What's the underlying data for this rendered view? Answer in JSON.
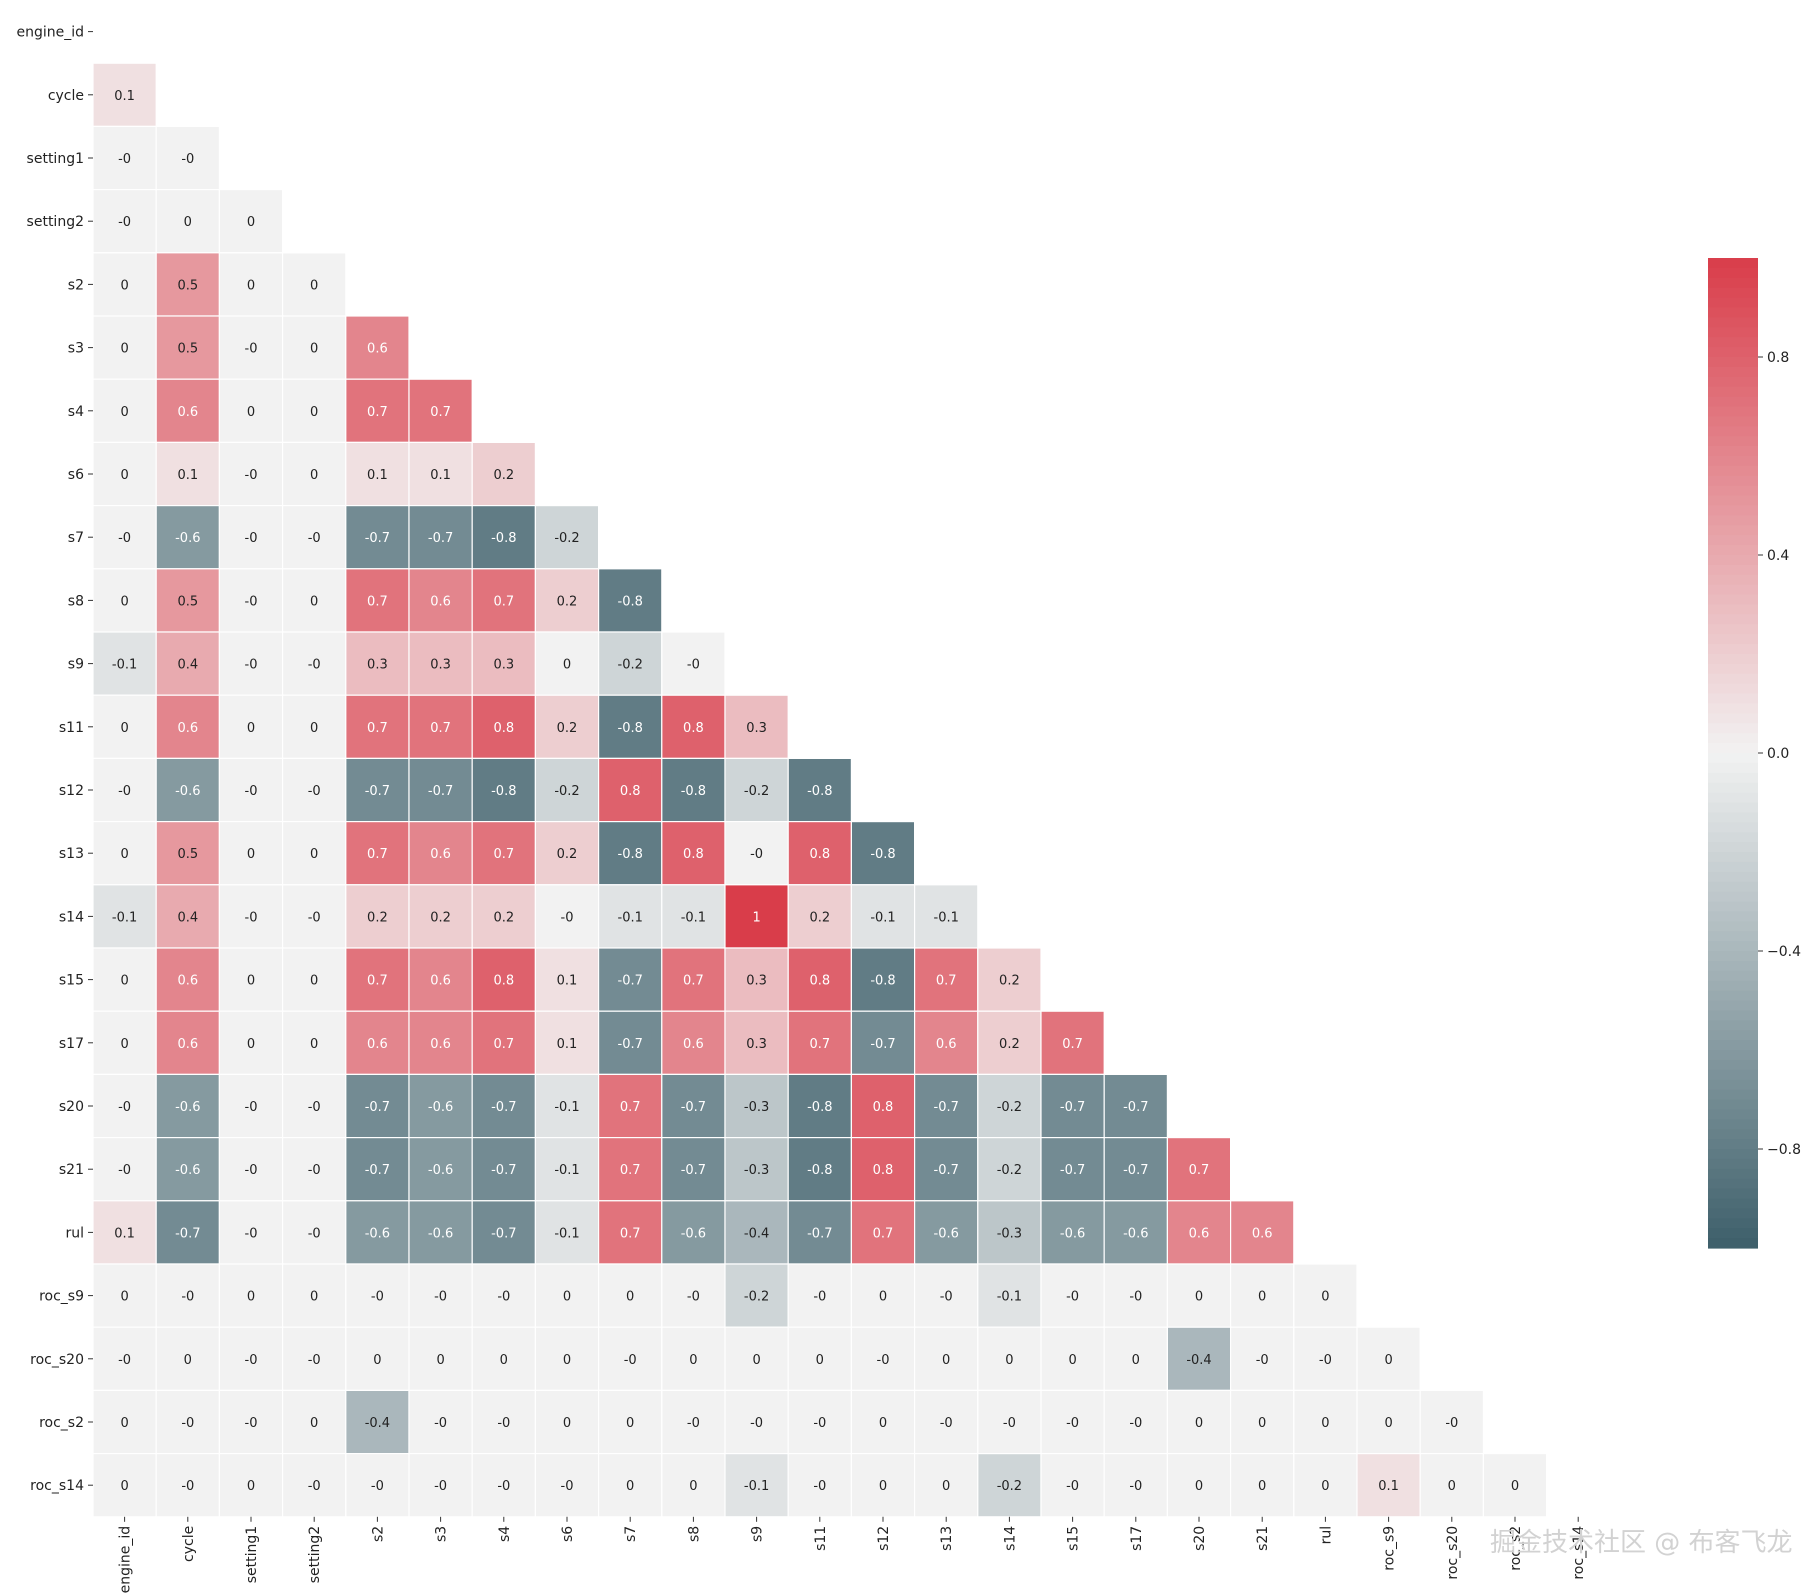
{
  "chart_data": {
    "type": "heatmap",
    "variant": "lower-triangle correlation matrix",
    "labels": [
      "engine_id",
      "cycle",
      "setting1",
      "setting2",
      "s2",
      "s3",
      "s4",
      "s6",
      "s7",
      "s8",
      "s9",
      "s11",
      "s12",
      "s13",
      "s14",
      "s15",
      "s17",
      "s20",
      "s21",
      "rul",
      "roc_s9",
      "roc_s20",
      "roc_s2",
      "roc_s14"
    ],
    "rows": [
      [],
      [
        "0.1"
      ],
      [
        "-0",
        "-0"
      ],
      [
        "-0",
        "0",
        "0"
      ],
      [
        "0",
        "0.5",
        "0",
        "0"
      ],
      [
        "0",
        "0.5",
        "-0",
        "0",
        "0.6"
      ],
      [
        "0",
        "0.6",
        "0",
        "0",
        "0.7",
        "0.7"
      ],
      [
        "0",
        "0.1",
        "-0",
        "0",
        "0.1",
        "0.1",
        "0.2"
      ],
      [
        "-0",
        "-0.6",
        "-0",
        "-0",
        "-0.7",
        "-0.7",
        "-0.8",
        "-0.2"
      ],
      [
        "0",
        "0.5",
        "-0",
        "0",
        "0.7",
        "0.6",
        "0.7",
        "0.2",
        "-0.8"
      ],
      [
        "-0.1",
        "0.4",
        "-0",
        "-0",
        "0.3",
        "0.3",
        "0.3",
        "0",
        "-0.2",
        "-0"
      ],
      [
        "0",
        "0.6",
        "0",
        "0",
        "0.7",
        "0.7",
        "0.8",
        "0.2",
        "-0.8",
        "0.8",
        "0.3"
      ],
      [
        "-0",
        "-0.6",
        "-0",
        "-0",
        "-0.7",
        "-0.7",
        "-0.8",
        "-0.2",
        "0.8",
        "-0.8",
        "-0.2",
        "-0.8"
      ],
      [
        "0",
        "0.5",
        "0",
        "0",
        "0.7",
        "0.6",
        "0.7",
        "0.2",
        "-0.8",
        "0.8",
        "-0",
        "0.8",
        "-0.8"
      ],
      [
        "-0.1",
        "0.4",
        "-0",
        "-0",
        "0.2",
        "0.2",
        "0.2",
        "-0",
        "-0.1",
        "-0.1",
        "1",
        "0.2",
        "-0.1",
        "-0.1"
      ],
      [
        "0",
        "0.6",
        "0",
        "0",
        "0.7",
        "0.6",
        "0.8",
        "0.1",
        "-0.7",
        "0.7",
        "0.3",
        "0.8",
        "-0.8",
        "0.7",
        "0.2"
      ],
      [
        "0",
        "0.6",
        "0",
        "0",
        "0.6",
        "0.6",
        "0.7",
        "0.1",
        "-0.7",
        "0.6",
        "0.3",
        "0.7",
        "-0.7",
        "0.6",
        "0.2",
        "0.7"
      ],
      [
        "-0",
        "-0.6",
        "-0",
        "-0",
        "-0.7",
        "-0.6",
        "-0.7",
        "-0.1",
        "0.7",
        "-0.7",
        "-0.3",
        "-0.8",
        "0.8",
        "-0.7",
        "-0.2",
        "-0.7",
        "-0.7"
      ],
      [
        "-0",
        "-0.6",
        "-0",
        "-0",
        "-0.7",
        "-0.6",
        "-0.7",
        "-0.1",
        "0.7",
        "-0.7",
        "-0.3",
        "-0.8",
        "0.8",
        "-0.7",
        "-0.2",
        "-0.7",
        "-0.7",
        "0.7"
      ],
      [
        "0.1",
        "-0.7",
        "-0",
        "-0",
        "-0.6",
        "-0.6",
        "-0.7",
        "-0.1",
        "0.7",
        "-0.6",
        "-0.4",
        "-0.7",
        "0.7",
        "-0.6",
        "-0.3",
        "-0.6",
        "-0.6",
        "0.6",
        "0.6"
      ],
      [
        "0",
        "-0",
        "0",
        "0",
        "-0",
        "-0",
        "-0",
        "0",
        "0",
        "-0",
        "-0.2",
        "-0",
        "0",
        "-0",
        "-0.1",
        "-0",
        "-0",
        "0",
        "0",
        "0"
      ],
      [
        "-0",
        "0",
        "-0",
        "-0",
        "0",
        "0",
        "0",
        "0",
        "-0",
        "0",
        "0",
        "0",
        "-0",
        "0",
        "0",
        "0",
        "0",
        "-0.4",
        "-0",
        "-0",
        "0"
      ],
      [
        "0",
        "-0",
        "-0",
        "0",
        "-0.4",
        "-0",
        "-0",
        "0",
        "0",
        "-0",
        "-0",
        "-0",
        "0",
        "-0",
        "-0",
        "-0",
        "-0",
        "0",
        "0",
        "0",
        "0",
        "-0"
      ],
      [
        "0",
        "-0",
        "0",
        "-0",
        "-0",
        "-0",
        "-0",
        "-0",
        "0",
        "0",
        "-0.1",
        "-0",
        "0",
        "0",
        "-0.2",
        "-0",
        "-0",
        "0",
        "0",
        "0",
        "0.1",
        "0",
        "0"
      ]
    ],
    "colorbar": {
      "ticks": [
        0.8,
        0.4,
        0.0,
        -0.4,
        -0.8
      ],
      "tick_labels": [
        "0.8",
        "0.4",
        "0.0",
        "−0.4",
        "−0.8"
      ],
      "range": [
        -1,
        1
      ],
      "colors": {
        "negative": "#3d5f6a",
        "neutral": "#f2f2f2",
        "positive": "#d93d4a"
      }
    },
    "grid": true
  },
  "watermark": "掘金技术社区 @ 布客飞龙"
}
